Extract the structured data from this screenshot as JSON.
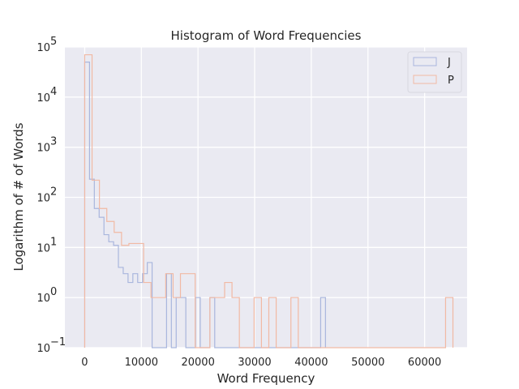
{
  "chart_data": {
    "type": "histogram",
    "title": "Histogram of Word Frequencies",
    "xlabel": "Word Frequency",
    "ylabel": "Logarithm of # of Words",
    "xlim": [
      -3500,
      67500
    ],
    "ylim": [
      0.1,
      100000
    ],
    "yscale": "log",
    "grid": true,
    "legend_position": "top-right",
    "x_ticks": [
      0,
      10000,
      20000,
      30000,
      40000,
      50000,
      60000
    ],
    "x_tick_labels": [
      "0",
      "10000",
      "20000",
      "30000",
      "40000",
      "50000",
      "60000"
    ],
    "y_ticks": [
      {
        "value": 0.1,
        "base": "10",
        "exp": "−1"
      },
      {
        "value": 1,
        "base": "10",
        "exp": "0"
      },
      {
        "value": 10,
        "base": "10",
        "exp": "1"
      },
      {
        "value": 100,
        "base": "10",
        "exp": "2"
      },
      {
        "value": 1000,
        "base": "10",
        "exp": "3"
      },
      {
        "value": 10000,
        "base": "10",
        "exp": "4"
      },
      {
        "value": 100000,
        "base": "10",
        "exp": "5"
      }
    ],
    "series": [
      {
        "name": "J",
        "color": "#a9b6dd",
        "bin_width": 850,
        "bin_start": 0,
        "counts": [
          50000,
          230,
          60,
          40,
          18,
          13,
          11,
          4,
          3,
          2,
          3,
          2,
          3,
          5,
          0,
          0,
          0,
          3,
          0,
          1,
          1,
          0,
          0,
          1,
          0,
          0,
          1,
          0,
          0,
          0,
          0,
          0,
          0,
          0,
          0,
          0,
          0,
          0,
          0,
          0,
          0,
          0,
          0,
          0,
          0,
          0,
          0,
          0,
          0,
          1
        ]
      },
      {
        "name": "P",
        "color": "#f1b9a4",
        "bin_width": 1300,
        "bin_start": 0,
        "counts": [
          70000,
          220,
          60,
          33,
          20,
          11,
          12,
          12,
          2,
          1,
          1,
          3,
          1,
          3,
          3,
          0,
          0,
          1,
          1,
          2,
          1,
          0,
          0,
          1,
          0,
          1,
          0,
          0,
          1,
          0,
          0,
          0,
          0,
          0,
          0,
          0,
          0,
          0,
          0,
          0,
          0,
          0,
          0,
          0,
          0,
          0,
          0,
          0,
          0,
          1
        ]
      }
    ]
  }
}
